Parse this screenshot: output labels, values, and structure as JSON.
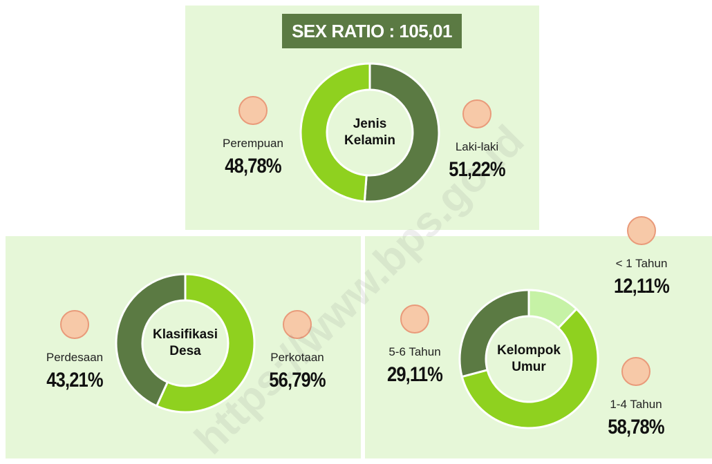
{
  "watermark": "https://www.bps.go.id",
  "chart_data": [
    {
      "type": "pie",
      "donut": true,
      "title": "SEX RATIO : 105,01",
      "center_label": "Jenis Kelamin",
      "categories": [
        "Laki-laki",
        "Perempuan"
      ],
      "values": [
        51.22,
        48.78
      ],
      "value_labels": [
        "51,22%",
        "48,78%"
      ],
      "colors": [
        "#5b7a43",
        "#8fd11f"
      ]
    },
    {
      "type": "pie",
      "donut": true,
      "center_label": "Klasifikasi Desa",
      "categories": [
        "Perkotaan",
        "Perdesaan"
      ],
      "values": [
        56.79,
        43.21
      ],
      "value_labels": [
        "56,79%",
        "43,21%"
      ],
      "colors": [
        "#8fd11f",
        "#5b7a43"
      ]
    },
    {
      "type": "pie",
      "donut": true,
      "center_label": "Kelompok Umur",
      "categories": [
        "< 1 Tahun",
        "1-4 Tahun",
        "5-6 Tahun"
      ],
      "values": [
        12.11,
        58.78,
        29.11
      ],
      "value_labels": [
        "12,11%",
        "58,78%",
        "29,11%"
      ],
      "colors": [
        "#c6f2a6",
        "#8fd11f",
        "#5b7a43"
      ]
    }
  ]
}
